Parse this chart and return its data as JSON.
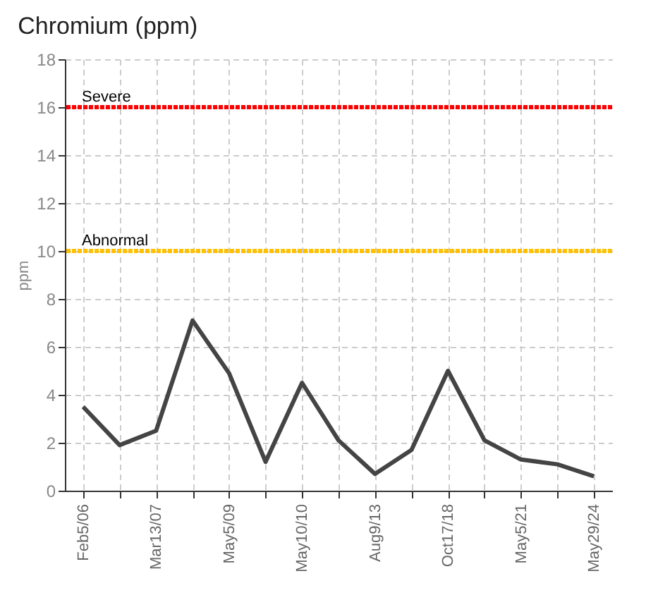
{
  "chart_data": {
    "type": "line",
    "title": "Chromium (ppm)",
    "ylabel": "ppm",
    "categories": [
      "Feb5/06",
      null,
      "Mar13/07",
      null,
      "May5/09",
      null,
      "May10/10",
      null,
      "Aug9/13",
      null,
      "Oct17/18",
      null,
      "May5/21",
      null,
      "May29/24"
    ],
    "series": [
      {
        "color": "#444444",
        "values": [
          3.5,
          1.9,
          2.5,
          7.1,
          4.9,
          1.2,
          4.5,
          2.1,
          0.7,
          1.7,
          5.0,
          2.1,
          1.3,
          1.1,
          0.6
        ]
      }
    ],
    "ylim": [
      0,
      18
    ],
    "yticks": [
      0,
      2,
      4,
      6,
      8,
      10,
      12,
      14,
      16,
      18
    ],
    "grid": true,
    "marker": "none",
    "line_style": "solid",
    "ref_lines": [
      {
        "axis": "y",
        "value": 16,
        "label": "Severe",
        "color": "#ff0000",
        "line_style": "dotted"
      },
      {
        "axis": "y",
        "value": 10,
        "label": "Abnormal",
        "color": "#ffc000",
        "line_style": "dotted"
      }
    ]
  }
}
